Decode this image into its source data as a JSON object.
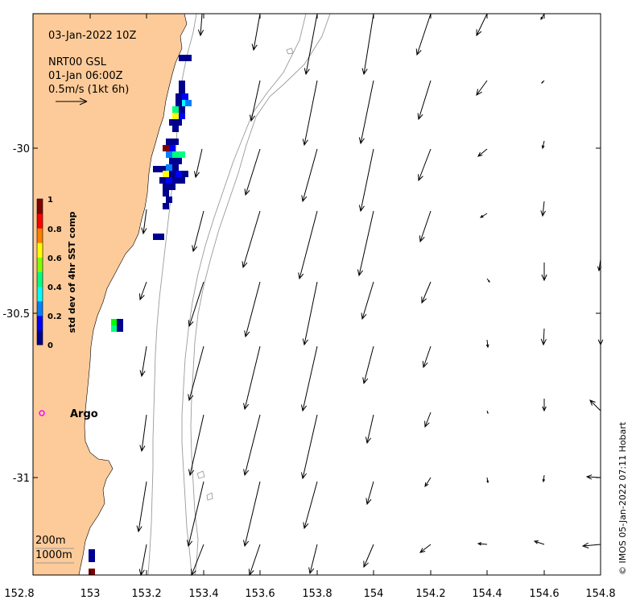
{
  "header": {
    "datetime": "03-Jan-2022 10Z",
    "product": "NRT00 GSL",
    "product_time": "01-Jan 06:00Z",
    "scale_label": "0.5m/s (1kt 6h)"
  },
  "colorbar": {
    "title": "std dev of 4hr SST comp",
    "ticks": [
      "0",
      "0.2",
      "0.4",
      "0.6",
      "0.8",
      "1"
    ],
    "colors": [
      "#00008f",
      "#0000ff",
      "#0080ff",
      "#00ffff",
      "#00ff80",
      "#80ff00",
      "#ffff00",
      "#ff8000",
      "#ff0000",
      "#800000"
    ]
  },
  "x_axis": {
    "ticks": [
      "152.8",
      "153",
      "153.2",
      "153.4",
      "153.6",
      "153.8",
      "154",
      "154.2",
      "154.4",
      "154.6",
      "154.8"
    ]
  },
  "y_axis": {
    "ticks": [
      "-30",
      "-30.5",
      "-31"
    ]
  },
  "argo": {
    "label": "Argo",
    "color": "#ff00ff"
  },
  "bathymetry": {
    "contour_1": "200m",
    "contour_2": "1000m"
  },
  "credit": "© IMOS 05-Jan-2022 07:11 Hobart",
  "colors": {
    "land": "#fdcb99",
    "ocean": "#ffffff",
    "contour": "#9a9a9a"
  },
  "map_extent": {
    "lon": [
      152.8,
      154.8
    ],
    "lat": [
      -31.3,
      -29.62
    ]
  }
}
